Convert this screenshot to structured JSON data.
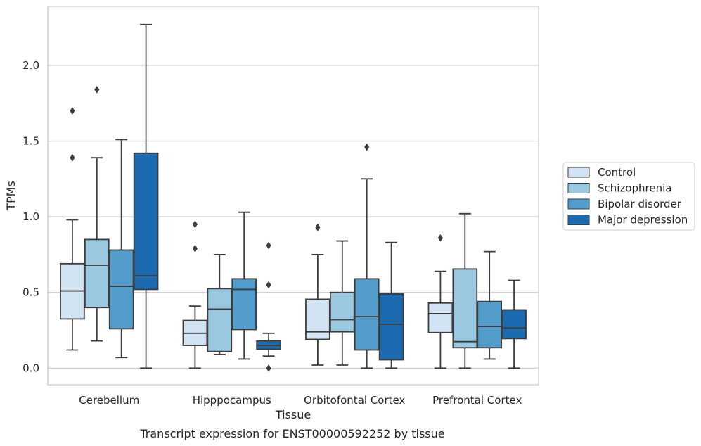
{
  "chart_data": {
    "type": "boxplot",
    "title": "Transcript expression for ENST00000592252 by tissue",
    "xlabel": "Tissue",
    "ylabel": "TPMs",
    "ylim": [
      -0.11,
      2.39
    ],
    "yticks": [
      0.0,
      0.5,
      1.0,
      1.5,
      2.0
    ],
    "ytick_labels": [
      "0.0",
      "0.5",
      "1.0",
      "1.5",
      "2.0"
    ],
    "grid": "horizontal",
    "legend_position": "right",
    "categories": [
      "Cerebellum",
      "Hipppocampus",
      "Orbitofontal Cortex",
      "Prefrontal Cortex"
    ],
    "series": [
      {
        "name": "Control",
        "color": "#d2e3f3",
        "boxes": [
          {
            "whislo": 0.12,
            "q1": 0.325,
            "med": 0.51,
            "q3": 0.69,
            "whishi": 0.98,
            "fliers": [
              1.39,
              1.7
            ]
          },
          {
            "whislo": 0.0,
            "q1": 0.15,
            "med": 0.23,
            "q3": 0.315,
            "whishi": 0.41,
            "fliers": [
              0.79,
              0.95
            ]
          },
          {
            "whislo": 0.02,
            "q1": 0.19,
            "med": 0.24,
            "q3": 0.455,
            "whishi": 0.75,
            "fliers": [
              0.93
            ]
          },
          {
            "whislo": 0.0,
            "q1": 0.235,
            "med": 0.36,
            "q3": 0.43,
            "whishi": 0.64,
            "fliers": [
              0.86
            ]
          }
        ]
      },
      {
        "name": "Schizophrenia",
        "color": "#9ac8e0",
        "boxes": [
          {
            "whislo": 0.18,
            "q1": 0.4,
            "med": 0.68,
            "q3": 0.85,
            "whishi": 1.39,
            "fliers": [
              1.84
            ]
          },
          {
            "whislo": 0.09,
            "q1": 0.11,
            "med": 0.39,
            "q3": 0.525,
            "whishi": 0.75,
            "fliers": []
          },
          {
            "whislo": 0.02,
            "q1": 0.24,
            "med": 0.32,
            "q3": 0.5,
            "whishi": 0.84,
            "fliers": []
          },
          {
            "whislo": 0.0,
            "q1": 0.135,
            "med": 0.175,
            "q3": 0.655,
            "whishi": 1.02,
            "fliers": []
          }
        ]
      },
      {
        "name": "Bipolar disorder",
        "color": "#529dcc",
        "boxes": [
          {
            "whislo": 0.07,
            "q1": 0.26,
            "med": 0.54,
            "q3": 0.78,
            "whishi": 1.51,
            "fliers": []
          },
          {
            "whislo": 0.06,
            "q1": 0.255,
            "med": 0.52,
            "q3": 0.59,
            "whishi": 1.03,
            "fliers": []
          },
          {
            "whislo": 0.0,
            "q1": 0.12,
            "med": 0.34,
            "q3": 0.59,
            "whishi": 1.25,
            "fliers": [
              1.46
            ]
          },
          {
            "whislo": 0.06,
            "q1": 0.135,
            "med": 0.275,
            "q3": 0.44,
            "whishi": 0.77,
            "fliers": []
          }
        ]
      },
      {
        "name": "Major depression",
        "color": "#1c6aaf",
        "boxes": [
          {
            "whislo": 0.0,
            "q1": 0.52,
            "med": 0.61,
            "q3": 1.42,
            "whishi": 2.27,
            "fliers": []
          },
          {
            "whislo": 0.08,
            "q1": 0.125,
            "med": 0.15,
            "q3": 0.18,
            "whishi": 0.23,
            "fliers": [
              0.0,
              0.55,
              0.81
            ]
          },
          {
            "whislo": 0.0,
            "q1": 0.055,
            "med": 0.29,
            "q3": 0.49,
            "whishi": 0.83,
            "fliers": []
          },
          {
            "whislo": 0.0,
            "q1": 0.195,
            "med": 0.265,
            "q3": 0.385,
            "whishi": 0.58,
            "fliers": []
          }
        ]
      }
    ]
  }
}
